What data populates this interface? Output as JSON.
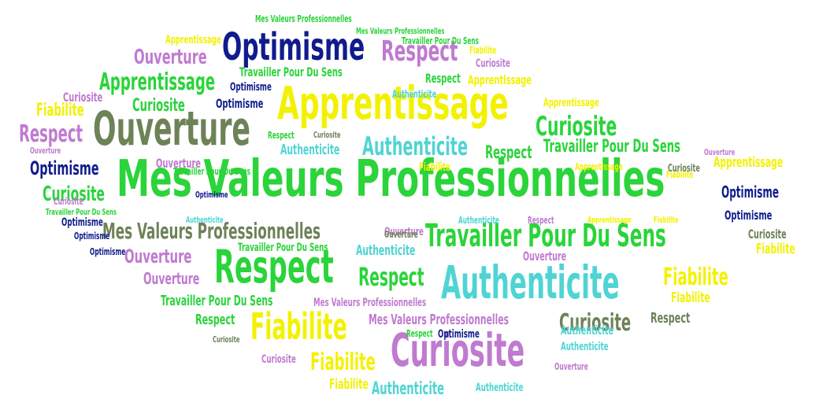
{
  "words": [
    {
      "text": "Mes Valeurs Professionnelles",
      "color": "green"
    },
    {
      "text": "Apprentissage",
      "color": "yellow"
    },
    {
      "text": "Ouverture",
      "color": "olive"
    },
    {
      "text": "Respect",
      "color": "green"
    },
    {
      "text": "Authenticite",
      "color": "cyan"
    },
    {
      "text": "Curiosite",
      "color": "violet"
    },
    {
      "text": "Travailler Pour Du Sens",
      "color": "green"
    },
    {
      "text": "Optimisme",
      "color": "navy"
    },
    {
      "text": "Fiabilite",
      "color": "yellow"
    },
    {
      "text": "Mes  Valeurs Professionnelles",
      "color": "olive"
    },
    {
      "text": "Respect",
      "color": "violet"
    },
    {
      "text": "Apprentissage",
      "color": "green"
    },
    {
      "text": "Curiosite",
      "color": "green"
    },
    {
      "text": "Authenticite",
      "color": "cyan"
    },
    {
      "text": "Ouverture",
      "color": "violet"
    },
    {
      "text": "Curiosite",
      "color": "olive"
    },
    {
      "text": "Fiabilite",
      "color": "yellow"
    },
    {
      "text": "Respect",
      "color": "green"
    },
    {
      "text": "Fiabilite",
      "color": "yellow"
    },
    {
      "text": "Respect",
      "color": "violet"
    },
    {
      "text": "Optimisme",
      "color": "navy"
    },
    {
      "text": "Curiosite",
      "color": "green"
    },
    {
      "text": "Ouverture",
      "color": "violet"
    },
    {
      "text": "Mes  Valeurs Professionnelles",
      "color": "violet"
    },
    {
      "text": "Travailler Pour Du Sens",
      "color": "green"
    },
    {
      "text": "Authenticite",
      "color": "cyan"
    },
    {
      "text": "Respect",
      "color": "green"
    },
    {
      "text": "Apprentissage",
      "color": "yellow"
    },
    {
      "text": "Curiosite",
      "color": "violet"
    },
    {
      "text": "Fiabilite",
      "color": "yellow"
    },
    {
      "text": "Optimisme",
      "color": "navy"
    },
    {
      "text": "Optimisme",
      "color": "navy"
    },
    {
      "text": "Travailler Pour Du Sens",
      "color": "green"
    },
    {
      "text": "Ouverture",
      "color": "violet"
    },
    {
      "text": "Fiabilite",
      "color": "yellow"
    },
    {
      "text": "Curiosite",
      "color": "green"
    },
    {
      "text": "Apprentissage",
      "color": "yellow"
    },
    {
      "text": "Ouverture",
      "color": "violet"
    },
    {
      "text": "Authenticite",
      "color": "cyan"
    },
    {
      "text": "Respect",
      "color": "olive"
    },
    {
      "text": "Fiabilite",
      "color": "yellow"
    },
    {
      "text": "Fiabilite",
      "color": "yellow"
    },
    {
      "text": "Ouverture",
      "color": "violet"
    },
    {
      "text": "Authenticite",
      "color": "cyan"
    },
    {
      "text": "Respect",
      "color": "green"
    },
    {
      "text": "Authenticite",
      "color": "cyan"
    },
    {
      "text": "Curiosite",
      "color": "violet"
    },
    {
      "text": "Travailler Pour Du Sens",
      "color": "green"
    },
    {
      "text": "Optimisme",
      "color": "navy"
    },
    {
      "text": "Optimisme",
      "color": "navy"
    },
    {
      "text": "Curiosite",
      "color": "olive"
    },
    {
      "text": "Curiosite",
      "color": "violet"
    },
    {
      "text": "Ouverture",
      "color": "violet"
    },
    {
      "text": "Fiabilite",
      "color": "yellow"
    },
    {
      "text": "Respect",
      "color": "green"
    },
    {
      "text": "Authenticite",
      "color": "cyan"
    },
    {
      "text": "Authenticite",
      "color": "cyan"
    },
    {
      "text": "Apprentissage",
      "color": "yellow"
    },
    {
      "text": "Apprentissage",
      "color": "yellow"
    },
    {
      "text": "Mes  Valeurs Professionnelles",
      "color": "green"
    },
    {
      "text": "Travailler Pour Du Sens",
      "color": "green"
    },
    {
      "text": "Mes  Valeurs Professionnelles",
      "color": "green"
    },
    {
      "text": "Mes  Valeurs Professionnelles",
      "color": "violet"
    },
    {
      "text": "Optimisme",
      "color": "navy"
    },
    {
      "text": "Optimisme",
      "color": "navy"
    },
    {
      "text": "Optimisme",
      "color": "navy"
    },
    {
      "text": "Optimisme",
      "color": "navy"
    },
    {
      "text": "Curiosite",
      "color": "violet"
    },
    {
      "text": "Fiabilite",
      "color": "yellow"
    },
    {
      "text": "Respect",
      "color": "green"
    },
    {
      "text": "Travailler Pour Du Sens",
      "color": "green"
    },
    {
      "text": "Ouverture",
      "color": "olive"
    },
    {
      "text": "Authenticite",
      "color": "cyan"
    },
    {
      "text": "Ouverture",
      "color": "violet"
    },
    {
      "text": "Apprentissage",
      "color": "yellow"
    },
    {
      "text": "Fiabilite",
      "color": "yellow"
    },
    {
      "text": "Authenticite",
      "color": "cyan"
    },
    {
      "text": "Curiosite",
      "color": "olive"
    },
    {
      "text": "Curiosite",
      "color": "olive"
    },
    {
      "text": "Respect",
      "color": "violet"
    },
    {
      "text": "Respect",
      "color": "green"
    },
    {
      "text": "Optimisme",
      "color": "navy"
    },
    {
      "text": "Ouverture",
      "color": "violet"
    },
    {
      "text": "Apprentissage",
      "color": "yellow"
    },
    {
      "text": "Curiosite",
      "color": "olive"
    },
    {
      "text": "Fiabilite",
      "color": "yellow"
    },
    {
      "text": "Authenticite",
      "color": "cyan"
    },
    {
      "text": "Travailler Pour Du Sens",
      "color": "green"
    },
    {
      "text": "Travailler Pour Du Sens",
      "color": "green"
    },
    {
      "text": "Ouverture",
      "color": "violet"
    }
  ],
  "colors": {
    "green": "#2ad43a",
    "yellow": "#f2f200",
    "navy": "#101c8c",
    "violet": "#c07ad0",
    "olive": "#6e8258",
    "cyan": "#4fd4d4"
  }
}
